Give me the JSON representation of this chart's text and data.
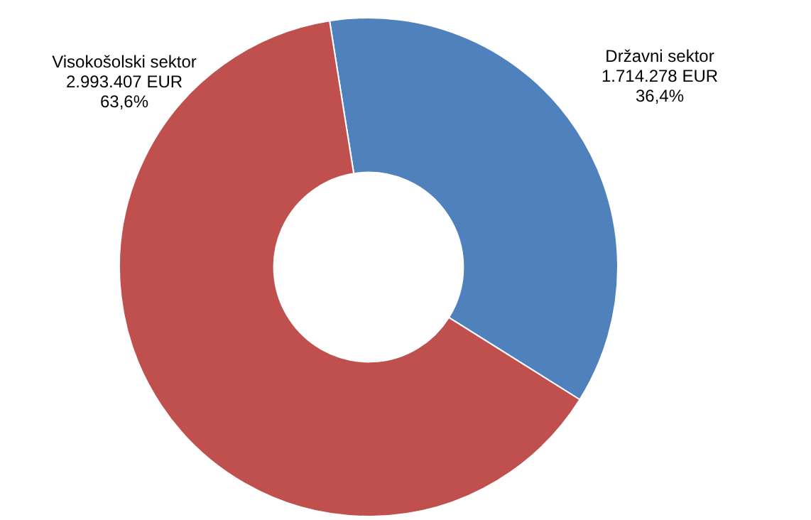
{
  "chart_data": {
    "type": "donut",
    "categories": [
      "Državni sektor",
      "Visokošolski sektor"
    ],
    "values": [
      1714278,
      2993407
    ],
    "colors": [
      "#4f81bd",
      "#c0504d"
    ],
    "value_labels": [
      "1.714.278 EUR\n36,4%",
      "2.993.407 EUR\n63,6%"
    ],
    "legend": false
  }
}
